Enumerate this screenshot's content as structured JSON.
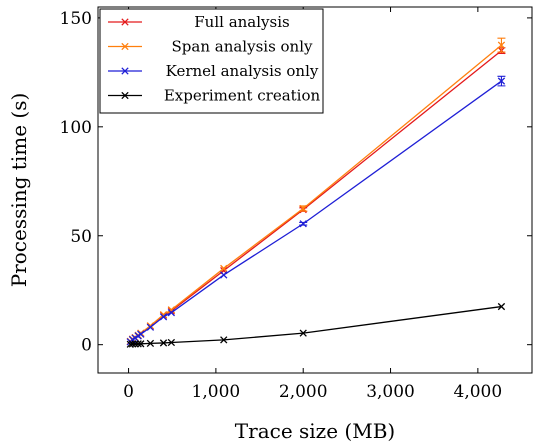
{
  "chart_data": {
    "type": "line",
    "xlabel": "Trace size (MB)",
    "ylabel": "Processing time (s)",
    "xlim": [
      -350,
      4620
    ],
    "ylim": [
      -13,
      155
    ],
    "x_ticks": [
      0,
      1000,
      2000,
      3000,
      4000
    ],
    "x_tick_labels": [
      "0",
      "1,000",
      "2,000",
      "3,000",
      "4,000"
    ],
    "y_ticks": [
      0,
      50,
      100,
      150
    ],
    "y_tick_labels": [
      "0",
      "50",
      "100",
      "150"
    ],
    "grid": false,
    "legend_position": "top-left",
    "series": [
      {
        "name": "Full analysis",
        "color": "#e41a1c",
        "marker": "x",
        "x": [
          20,
          45,
          75,
          110,
          140,
          250,
          400,
          490,
          1090,
          2000,
          4270
        ],
        "y": [
          1.5,
          2.5,
          3.2,
          4.2,
          5.2,
          8.5,
          13.5,
          15.5,
          34.0,
          62.0,
          135.0
        ],
        "err": [
          0,
          0,
          0,
          0,
          0,
          0,
          0,
          0,
          0,
          0.8,
          1.3
        ]
      },
      {
        "name": "Span analysis only",
        "color": "#ff7f0e",
        "marker": "x",
        "x": [
          20,
          45,
          75,
          110,
          140,
          250,
          400,
          490,
          1090,
          2000,
          4270
        ],
        "y": [
          1.5,
          2.6,
          3.3,
          4.3,
          5.3,
          8.7,
          13.8,
          16.0,
          35.0,
          62.5,
          137.5
        ],
        "err": [
          0,
          0,
          0,
          0,
          0,
          0,
          0,
          0,
          0,
          1.2,
          3.2
        ]
      },
      {
        "name": "Kernel analysis only",
        "color": "#1f1fd6",
        "marker": "x",
        "x": [
          20,
          45,
          75,
          110,
          140,
          250,
          400,
          490,
          1090,
          2000,
          4270
        ],
        "y": [
          1.3,
          2.3,
          3.0,
          4.0,
          4.8,
          8.0,
          12.8,
          14.7,
          32.0,
          55.5,
          121.0
        ],
        "err": [
          0,
          0,
          0,
          0,
          0,
          0,
          0,
          0,
          0,
          0.6,
          2.2
        ]
      },
      {
        "name": "Experiment creation",
        "color": "#000000",
        "marker": "x",
        "x": [
          20,
          45,
          75,
          110,
          140,
          250,
          400,
          490,
          1090,
          2000,
          4270
        ],
        "y": [
          0.2,
          0.3,
          0.3,
          0.4,
          0.4,
          0.6,
          0.8,
          1.0,
          2.2,
          5.3,
          17.5
        ],
        "err": [
          0,
          0,
          0,
          0,
          0,
          0,
          0,
          0,
          0,
          0,
          0
        ]
      }
    ]
  }
}
